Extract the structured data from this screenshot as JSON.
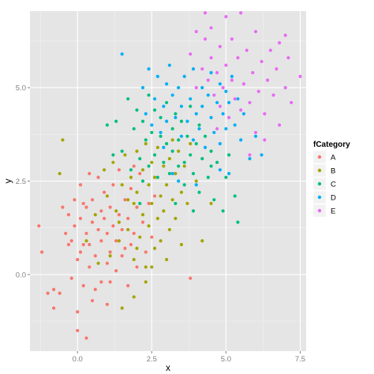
{
  "chart_data": {
    "type": "scatter",
    "title": "",
    "xlabel": "x",
    "ylabel": "y",
    "xlim": [
      -1.6,
      7.7
    ],
    "ylim": [
      -2.05,
      7.05
    ],
    "x_ticks": [
      0.0,
      2.5,
      5.0,
      7.5
    ],
    "x_tick_labels": [
      "0.0",
      "2.5",
      "5.0",
      "7.5"
    ],
    "y_ticks": [
      0.0,
      2.5,
      5.0
    ],
    "y_tick_labels": [
      "0.0",
      "2.5",
      "5.0"
    ],
    "grid": true,
    "legend_title": "fCategory",
    "legend_position": "right",
    "series": [
      {
        "name": "A",
        "color": "#F8766D",
        "points": [
          [
            -1.3,
            1.3
          ],
          [
            -1.2,
            0.6
          ],
          [
            -1.0,
            -0.5
          ],
          [
            -0.8,
            -0.4
          ],
          [
            -0.8,
            -0.9
          ],
          [
            -0.6,
            -0.5
          ],
          [
            -0.5,
            1.8
          ],
          [
            -0.4,
            1.1
          ],
          [
            -0.3,
            1.6
          ],
          [
            -0.2,
            -0.1
          ],
          [
            -0.2,
            0.9
          ],
          [
            -0.1,
            1.3
          ],
          [
            -0.1,
            2.0
          ],
          [
            0.0,
            0.4
          ],
          [
            0.0,
            -1.0
          ],
          [
            0.0,
            -1.5
          ],
          [
            0.1,
            0.6
          ],
          [
            0.1,
            1.5
          ],
          [
            0.1,
            2.4
          ],
          [
            0.2,
            -0.3
          ],
          [
            0.2,
            0.8
          ],
          [
            0.3,
            1.1
          ],
          [
            0.3,
            1.8
          ],
          [
            0.3,
            -1.7
          ],
          [
            0.4,
            0.2
          ],
          [
            0.4,
            0.8
          ],
          [
            0.5,
            1.4
          ],
          [
            0.5,
            2.0
          ],
          [
            0.6,
            -0.4
          ],
          [
            0.6,
            0.5
          ],
          [
            0.7,
            1.2
          ],
          [
            0.7,
            2.6
          ],
          [
            0.8,
            -0.2
          ],
          [
            0.8,
            0.9
          ],
          [
            0.9,
            1.5
          ],
          [
            0.9,
            2.2
          ],
          [
            1.0,
            0.3
          ],
          [
            1.0,
            1.1
          ],
          [
            1.0,
            -0.8
          ],
          [
            1.1,
            1.8
          ],
          [
            1.1,
            0.6
          ],
          [
            1.2,
            1.3
          ],
          [
            1.2,
            2.4
          ],
          [
            1.3,
            0.1
          ],
          [
            1.3,
            0.9
          ],
          [
            1.4,
            1.6
          ],
          [
            1.4,
            2.8
          ],
          [
            1.5,
            0.5
          ],
          [
            1.5,
            1.2
          ],
          [
            1.6,
            2.0
          ],
          [
            1.7,
            -0.3
          ],
          [
            1.7,
            1.5
          ],
          [
            1.8,
            0.8
          ],
          [
            1.8,
            2.3
          ],
          [
            1.9,
            1.1
          ],
          [
            2.0,
            1.8
          ],
          [
            2.0,
            0.2
          ],
          [
            2.1,
            2.7
          ],
          [
            2.2,
            1.4
          ],
          [
            2.3,
            0.6
          ],
          [
            2.4,
            1.9
          ],
          [
            2.5,
            1.0
          ],
          [
            2.6,
            2.1
          ],
          [
            0.4,
            2.7
          ],
          [
            -0.3,
            0.8
          ],
          [
            0.2,
            1.9
          ],
          [
            0.8,
            1.7
          ],
          [
            1.1,
            -0.2
          ],
          [
            0.5,
            -0.7
          ],
          [
            1.6,
            0.7
          ],
          [
            3.8,
            -0.1
          ],
          [
            1.9,
            2.9
          ]
        ]
      },
      {
        "name": "B",
        "color": "#A3A500",
        "points": [
          [
            -0.6,
            2.7
          ],
          [
            -0.5,
            3.6
          ],
          [
            0.3,
            0.9
          ],
          [
            0.6,
            1.6
          ],
          [
            0.7,
            0.3
          ],
          [
            0.9,
            2.8
          ],
          [
            1.0,
            2.1
          ],
          [
            1.1,
            0.5
          ],
          [
            1.2,
            3.0
          ],
          [
            1.3,
            1.7
          ],
          [
            1.4,
            0.9
          ],
          [
            1.5,
            2.4
          ],
          [
            1.6,
            3.2
          ],
          [
            1.7,
            1.2
          ],
          [
            1.8,
            2.6
          ],
          [
            1.9,
            0.4
          ],
          [
            1.9,
            1.9
          ],
          [
            2.0,
            3.3
          ],
          [
            2.0,
            2.2
          ],
          [
            2.1,
            1.0
          ],
          [
            2.2,
            2.8
          ],
          [
            2.2,
            1.6
          ],
          [
            2.3,
            3.5
          ],
          [
            2.3,
            0.2
          ],
          [
            2.4,
            2.4
          ],
          [
            2.4,
            1.3
          ],
          [
            2.5,
            3.0
          ],
          [
            2.5,
            1.9
          ],
          [
            2.6,
            0.7
          ],
          [
            2.6,
            2.6
          ],
          [
            2.7,
            1.5
          ],
          [
            2.7,
            3.4
          ],
          [
            2.8,
            2.1
          ],
          [
            2.8,
            0.9
          ],
          [
            2.9,
            2.9
          ],
          [
            2.9,
            1.7
          ],
          [
            3.0,
            2.4
          ],
          [
            3.0,
            0.4
          ],
          [
            3.1,
            3.1
          ],
          [
            3.1,
            1.2
          ],
          [
            3.2,
            2.0
          ],
          [
            3.3,
            2.7
          ],
          [
            3.3,
            1.5
          ],
          [
            3.4,
            3.3
          ],
          [
            3.5,
            2.2
          ],
          [
            3.5,
            0.8
          ],
          [
            3.6,
            2.9
          ],
          [
            3.7,
            1.9
          ],
          [
            3.8,
            3.5
          ],
          [
            4.0,
            2.5
          ],
          [
            4.2,
            0.9
          ],
          [
            4.5,
            1.9
          ],
          [
            1.5,
            -0.9
          ],
          [
            1.9,
            -0.6
          ],
          [
            2.3,
            -0.2
          ],
          [
            2.0,
            0.7
          ],
          [
            1.4,
            1.4
          ],
          [
            2.5,
            0.2
          ],
          [
            1.7,
            2.0
          ],
          [
            3.2,
            3.6
          ]
        ]
      },
      {
        "name": "C",
        "color": "#00BF7D",
        "points": [
          [
            1.0,
            4.0
          ],
          [
            1.3,
            4.1
          ],
          [
            1.5,
            3.3
          ],
          [
            1.7,
            4.7
          ],
          [
            1.8,
            2.8
          ],
          [
            1.9,
            3.9
          ],
          [
            2.0,
            4.4
          ],
          [
            2.1,
            3.1
          ],
          [
            2.2,
            2.5
          ],
          [
            2.2,
            4.1
          ],
          [
            2.3,
            3.6
          ],
          [
            2.4,
            4.8
          ],
          [
            2.4,
            2.9
          ],
          [
            2.5,
            3.8
          ],
          [
            2.6,
            3.2
          ],
          [
            2.6,
            4.4
          ],
          [
            2.7,
            2.6
          ],
          [
            2.8,
            3.7
          ],
          [
            2.8,
            4.2
          ],
          [
            2.9,
            3.0
          ],
          [
            3.0,
            3.5
          ],
          [
            3.0,
            4.6
          ],
          [
            3.1,
            2.7
          ],
          [
            3.2,
            3.9
          ],
          [
            3.2,
            3.3
          ],
          [
            3.3,
            4.3
          ],
          [
            3.4,
            2.9
          ],
          [
            3.4,
            3.6
          ],
          [
            3.5,
            4.1
          ],
          [
            3.6,
            3.0
          ],
          [
            3.6,
            2.4
          ],
          [
            3.7,
            3.7
          ],
          [
            3.8,
            3.2
          ],
          [
            3.8,
            4.5
          ],
          [
            3.9,
            2.7
          ],
          [
            4.0,
            3.5
          ],
          [
            4.1,
            4.0
          ],
          [
            4.1,
            2.2
          ],
          [
            4.2,
            3.1
          ],
          [
            4.3,
            3.7
          ],
          [
            4.4,
            2.6
          ],
          [
            4.5,
            3.3
          ],
          [
            4.6,
            2.0
          ],
          [
            4.7,
            3.0
          ],
          [
            4.9,
            1.7
          ],
          [
            5.0,
            2.6
          ],
          [
            5.1,
            3.2
          ],
          [
            5.3,
            2.1
          ],
          [
            5.4,
            1.4
          ],
          [
            2.1,
            1.9
          ],
          [
            3.9,
            1.7
          ],
          [
            3.3,
            1.9
          ],
          [
            4.5,
            2.9
          ],
          [
            1.2,
            3.2
          ]
        ]
      },
      {
        "name": "D",
        "color": "#00B0F6",
        "points": [
          [
            1.5,
            5.9
          ],
          [
            2.2,
            5.0
          ],
          [
            2.3,
            4.3
          ],
          [
            2.4,
            5.5
          ],
          [
            2.5,
            4.0
          ],
          [
            2.6,
            4.7
          ],
          [
            2.7,
            5.3
          ],
          [
            2.8,
            3.8
          ],
          [
            2.9,
            4.5
          ],
          [
            3.0,
            5.1
          ],
          [
            3.0,
            4.1
          ],
          [
            3.1,
            5.6
          ],
          [
            3.2,
            4.8
          ],
          [
            3.3,
            4.2
          ],
          [
            3.4,
            5.0
          ],
          [
            3.5,
            3.7
          ],
          [
            3.5,
            4.5
          ],
          [
            3.6,
            5.3
          ],
          [
            3.7,
            4.1
          ],
          [
            3.8,
            4.7
          ],
          [
            3.9,
            3.6
          ],
          [
            3.9,
            5.5
          ],
          [
            4.0,
            4.3
          ],
          [
            4.1,
            3.9
          ],
          [
            4.2,
            5.0
          ],
          [
            4.2,
            4.5
          ],
          [
            4.3,
            3.4
          ],
          [
            4.4,
            4.8
          ],
          [
            4.5,
            4.2
          ],
          [
            4.5,
            5.4
          ],
          [
            4.6,
            3.8
          ],
          [
            4.7,
            4.6
          ],
          [
            4.8,
            5.1
          ],
          [
            4.8,
            3.5
          ],
          [
            4.9,
            4.3
          ],
          [
            5.0,
            4.9
          ],
          [
            5.0,
            3.9
          ],
          [
            5.1,
            4.6
          ],
          [
            5.2,
            5.3
          ],
          [
            5.3,
            4.0
          ],
          [
            5.4,
            4.7
          ],
          [
            5.5,
            3.6
          ],
          [
            5.6,
            4.3
          ],
          [
            5.8,
            3.1
          ],
          [
            6.0,
            3.7
          ],
          [
            6.2,
            3.2
          ],
          [
            4.0,
            2.4
          ],
          [
            3.4,
            2.5
          ],
          [
            3.2,
            2.7
          ],
          [
            4.8,
            2.8
          ],
          [
            5.1,
            2.7
          ],
          [
            2.9,
            3.4
          ]
        ]
      },
      {
        "name": "E",
        "color": "#E76BF3",
        "points": [
          [
            3.8,
            5.9
          ],
          [
            4.0,
            6.5
          ],
          [
            4.2,
            5.5
          ],
          [
            4.3,
            6.3
          ],
          [
            4.4,
            5.2
          ],
          [
            4.5,
            5.8
          ],
          [
            4.5,
            6.6
          ],
          [
            4.6,
            4.8
          ],
          [
            4.7,
            5.4
          ],
          [
            4.8,
            6.1
          ],
          [
            4.8,
            4.5
          ],
          [
            4.9,
            5.0
          ],
          [
            5.0,
            5.6
          ],
          [
            5.0,
            6.9
          ],
          [
            5.1,
            4.2
          ],
          [
            5.2,
            5.2
          ],
          [
            5.2,
            6.3
          ],
          [
            5.3,
            4.7
          ],
          [
            5.4,
            5.8
          ],
          [
            5.5,
            4.4
          ],
          [
            5.6,
            5.1
          ],
          [
            5.7,
            6.0
          ],
          [
            5.8,
            4.6
          ],
          [
            5.9,
            5.4
          ],
          [
            6.0,
            6.5
          ],
          [
            6.1,
            4.9
          ],
          [
            6.2,
            5.7
          ],
          [
            6.3,
            4.3
          ],
          [
            6.4,
            5.2
          ],
          [
            6.5,
            6.0
          ],
          [
            6.6,
            4.8
          ],
          [
            6.7,
            5.5
          ],
          [
            6.8,
            6.2
          ],
          [
            7.0,
            5.0
          ],
          [
            7.1,
            5.8
          ],
          [
            7.2,
            4.6
          ],
          [
            7.5,
            5.3
          ],
          [
            5.5,
            7.0
          ],
          [
            6.8,
            4.0
          ],
          [
            6.0,
            3.8
          ],
          [
            4.7,
            3.9
          ],
          [
            4.0,
            5.0
          ],
          [
            5.8,
            3.2
          ],
          [
            6.3,
            3.6
          ],
          [
            7.0,
            6.4
          ],
          [
            4.3,
            7.0
          ]
        ]
      }
    ]
  }
}
